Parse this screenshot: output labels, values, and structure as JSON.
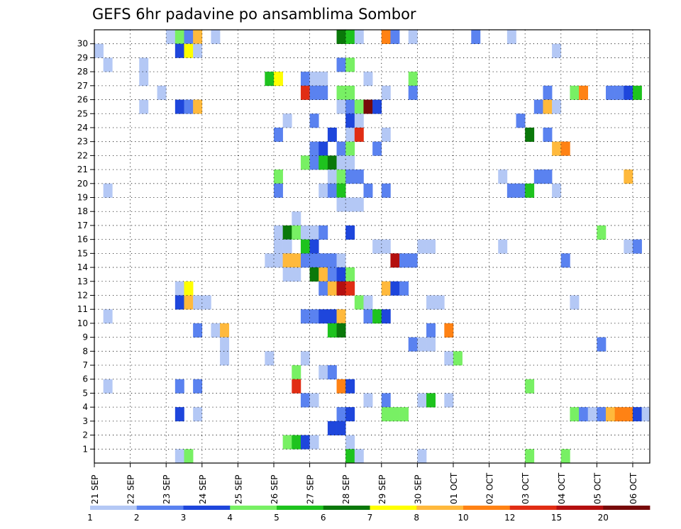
{
  "chart_data": {
    "type": "heatmap",
    "title": "GEFS 6hr padavine po ansamblima Sombor",
    "y_tick_labels": [
      "1",
      "2",
      "3",
      "4",
      "5",
      "6",
      "7",
      "8",
      "9",
      "10",
      "11",
      "12",
      "13",
      "14",
      "15",
      "16",
      "17",
      "18",
      "19",
      "20",
      "21",
      "22",
      "23",
      "24",
      "25",
      "26",
      "27",
      "28",
      "29",
      "30"
    ],
    "x_tick_labels": [
      "21 SEP",
      "22 SEP",
      "23 SEP",
      "24 SEP",
      "25 SEP",
      "26 SEP",
      "27 SEP",
      "28 SEP",
      "29 SEP",
      "30 SEP",
      "01 OCT",
      "02 OCT",
      "03 OCT",
      "04 OCT",
      "05 OCT",
      "06 OCT"
    ],
    "steps_per_day": 4,
    "colorbar": {
      "labels": [
        "1",
        "2",
        "3",
        "4",
        "5",
        "6",
        "7",
        "8",
        "10",
        "12",
        "15",
        "20"
      ],
      "colors": [
        "#b4c8f5",
        "#5a82f0",
        "#1e46dc",
        "#78f064",
        "#1ec31e",
        "#0a780a",
        "#ffff00",
        "#ffb93c",
        "#ff8214",
        "#e12d14",
        "#b40f0f",
        "#780a0a"
      ]
    },
    "cells": [
      [
        30,
        8,
        1
      ],
      [
        30,
        9,
        4
      ],
      [
        30,
        10,
        2
      ],
      [
        30,
        11,
        8
      ],
      [
        30,
        13,
        1
      ],
      [
        30,
        27,
        6
      ],
      [
        30,
        28,
        5
      ],
      [
        30,
        29,
        1
      ],
      [
        30,
        32,
        9
      ],
      [
        30,
        33,
        2
      ],
      [
        30,
        35,
        1
      ],
      [
        30,
        42,
        2
      ],
      [
        30,
        46,
        1
      ],
      [
        29,
        0,
        1
      ],
      [
        29,
        9,
        3
      ],
      [
        29,
        10,
        7
      ],
      [
        29,
        11,
        1
      ],
      [
        29,
        51,
        1
      ],
      [
        28,
        1,
        1
      ],
      [
        28,
        5,
        1
      ],
      [
        28,
        27,
        2
      ],
      [
        28,
        28,
        4
      ],
      [
        27,
        5,
        1
      ],
      [
        27,
        19,
        5
      ],
      [
        27,
        20,
        7
      ],
      [
        27,
        23,
        2
      ],
      [
        27,
        24,
        1
      ],
      [
        27,
        25,
        1
      ],
      [
        27,
        30,
        1
      ],
      [
        27,
        35,
        4
      ],
      [
        26,
        7,
        1
      ],
      [
        26,
        23,
        10
      ],
      [
        26,
        24,
        2
      ],
      [
        26,
        25,
        2
      ],
      [
        26,
        27,
        4
      ],
      [
        26,
        28,
        4
      ],
      [
        26,
        32,
        1
      ],
      [
        26,
        35,
        2
      ],
      [
        26,
        50,
        2
      ],
      [
        26,
        53,
        4
      ],
      [
        26,
        54,
        9
      ],
      [
        26,
        57,
        2
      ],
      [
        26,
        58,
        2
      ],
      [
        26,
        59,
        3
      ],
      [
        26,
        60,
        5
      ],
      [
        25,
        5,
        1
      ],
      [
        25,
        9,
        3
      ],
      [
        25,
        10,
        2
      ],
      [
        25,
        11,
        8
      ],
      [
        25,
        27,
        1
      ],
      [
        25,
        28,
        2
      ],
      [
        25,
        29,
        4
      ],
      [
        25,
        30,
        12
      ],
      [
        25,
        31,
        3
      ],
      [
        25,
        49,
        2
      ],
      [
        25,
        50,
        8
      ],
      [
        25,
        51,
        1
      ],
      [
        24,
        21,
        1
      ],
      [
        24,
        24,
        2
      ],
      [
        24,
        28,
        3
      ],
      [
        24,
        29,
        1
      ],
      [
        24,
        47,
        2
      ],
      [
        23,
        20,
        2
      ],
      [
        23,
        26,
        3
      ],
      [
        23,
        28,
        1
      ],
      [
        23,
        29,
        10
      ],
      [
        23,
        32,
        1
      ],
      [
        23,
        48,
        6
      ],
      [
        23,
        50,
        2
      ],
      [
        22,
        24,
        2
      ],
      [
        22,
        25,
        3
      ],
      [
        22,
        27,
        2
      ],
      [
        22,
        28,
        4
      ],
      [
        22,
        31,
        2
      ],
      [
        22,
        51,
        8
      ],
      [
        22,
        52,
        9
      ],
      [
        21,
        23,
        4
      ],
      [
        21,
        24,
        2
      ],
      [
        21,
        25,
        5
      ],
      [
        21,
        26,
        6
      ],
      [
        21,
        27,
        1
      ],
      [
        21,
        28,
        1
      ],
      [
        20,
        20,
        4
      ],
      [
        20,
        26,
        1
      ],
      [
        20,
        27,
        4
      ],
      [
        20,
        28,
        2
      ],
      [
        20,
        29,
        2
      ],
      [
        20,
        45,
        1
      ],
      [
        20,
        49,
        2
      ],
      [
        20,
        50,
        2
      ],
      [
        20,
        59,
        8
      ],
      [
        19,
        1,
        1
      ],
      [
        19,
        20,
        2
      ],
      [
        19,
        25,
        1
      ],
      [
        19,
        26,
        2
      ],
      [
        19,
        27,
        5
      ],
      [
        19,
        30,
        2
      ],
      [
        19,
        32,
        2
      ],
      [
        19,
        46,
        2
      ],
      [
        19,
        47,
        2
      ],
      [
        19,
        48,
        5
      ],
      [
        19,
        51,
        1
      ],
      [
        18,
        27,
        1
      ],
      [
        18,
        28,
        1
      ],
      [
        18,
        29,
        1
      ],
      [
        17,
        22,
        1
      ],
      [
        16,
        20,
        1
      ],
      [
        16,
        21,
        6
      ],
      [
        16,
        22,
        4
      ],
      [
        16,
        23,
        1
      ],
      [
        16,
        24,
        1
      ],
      [
        16,
        25,
        2
      ],
      [
        16,
        28,
        3
      ],
      [
        16,
        56,
        4
      ],
      [
        15,
        20,
        1
      ],
      [
        15,
        21,
        1
      ],
      [
        15,
        23,
        5
      ],
      [
        15,
        24,
        3
      ],
      [
        15,
        31,
        1
      ],
      [
        15,
        32,
        1
      ],
      [
        15,
        36,
        1
      ],
      [
        15,
        37,
        1
      ],
      [
        15,
        45,
        1
      ],
      [
        15,
        59,
        1
      ],
      [
        15,
        60,
        2
      ],
      [
        14,
        19,
        1
      ],
      [
        14,
        20,
        1
      ],
      [
        14,
        21,
        8
      ],
      [
        14,
        22,
        8
      ],
      [
        14,
        23,
        2
      ],
      [
        14,
        24,
        2
      ],
      [
        14,
        25,
        2
      ],
      [
        14,
        26,
        2
      ],
      [
        14,
        27,
        1
      ],
      [
        14,
        33,
        11
      ],
      [
        14,
        34,
        2
      ],
      [
        14,
        35,
        2
      ],
      [
        14,
        52,
        2
      ],
      [
        13,
        21,
        1
      ],
      [
        13,
        22,
        1
      ],
      [
        13,
        24,
        6
      ],
      [
        13,
        25,
        8
      ],
      [
        13,
        26,
        2
      ],
      [
        13,
        27,
        3
      ],
      [
        13,
        28,
        4
      ],
      [
        12,
        9,
        1
      ],
      [
        12,
        10,
        7
      ],
      [
        12,
        25,
        2
      ],
      [
        12,
        26,
        8
      ],
      [
        12,
        27,
        11
      ],
      [
        12,
        28,
        10
      ],
      [
        12,
        32,
        8
      ],
      [
        12,
        33,
        3
      ],
      [
        12,
        34,
        2
      ],
      [
        11,
        9,
        3
      ],
      [
        11,
        10,
        8
      ],
      [
        11,
        11,
        1
      ],
      [
        11,
        12,
        1
      ],
      [
        11,
        29,
        4
      ],
      [
        11,
        30,
        1
      ],
      [
        11,
        37,
        1
      ],
      [
        11,
        38,
        1
      ],
      [
        11,
        53,
        1
      ],
      [
        10,
        1,
        1
      ],
      [
        10,
        23,
        2
      ],
      [
        10,
        24,
        2
      ],
      [
        10,
        25,
        3
      ],
      [
        10,
        26,
        3
      ],
      [
        10,
        27,
        8
      ],
      [
        10,
        30,
        2
      ],
      [
        10,
        31,
        5
      ],
      [
        10,
        32,
        3
      ],
      [
        9,
        11,
        2
      ],
      [
        9,
        13,
        1
      ],
      [
        9,
        14,
        8
      ],
      [
        9,
        26,
        5
      ],
      [
        9,
        27,
        6
      ],
      [
        9,
        37,
        2
      ],
      [
        9,
        39,
        9
      ],
      [
        8,
        14,
        1
      ],
      [
        8,
        35,
        2
      ],
      [
        8,
        36,
        1
      ],
      [
        8,
        37,
        1
      ],
      [
        8,
        56,
        2
      ],
      [
        7,
        14,
        1
      ],
      [
        7,
        19,
        1
      ],
      [
        7,
        23,
        1
      ],
      [
        7,
        39,
        1
      ],
      [
        7,
        40,
        4
      ],
      [
        6,
        22,
        4
      ],
      [
        6,
        25,
        1
      ],
      [
        6,
        26,
        2
      ],
      [
        5,
        1,
        1
      ],
      [
        5,
        9,
        2
      ],
      [
        5,
        11,
        2
      ],
      [
        5,
        22,
        10
      ],
      [
        5,
        27,
        9
      ],
      [
        5,
        28,
        3
      ],
      [
        5,
        48,
        4
      ],
      [
        4,
        23,
        2
      ],
      [
        4,
        24,
        1
      ],
      [
        4,
        30,
        1
      ],
      [
        4,
        32,
        2
      ],
      [
        4,
        36,
        1
      ],
      [
        4,
        37,
        5
      ],
      [
        4,
        39,
        1
      ],
      [
        3,
        9,
        3
      ],
      [
        3,
        11,
        1
      ],
      [
        3,
        27,
        2
      ],
      [
        3,
        28,
        3
      ],
      [
        3,
        32,
        4
      ],
      [
        3,
        33,
        4
      ],
      [
        3,
        34,
        4
      ],
      [
        3,
        53,
        4
      ],
      [
        3,
        54,
        2
      ],
      [
        3,
        55,
        1
      ],
      [
        3,
        56,
        2
      ],
      [
        3,
        57,
        8
      ],
      [
        3,
        58,
        9
      ],
      [
        3,
        59,
        9
      ],
      [
        3,
        60,
        3
      ],
      [
        3,
        61,
        1
      ],
      [
        2,
        26,
        3
      ],
      [
        2,
        27,
        3
      ],
      [
        1,
        21,
        4
      ],
      [
        1,
        22,
        5
      ],
      [
        1,
        23,
        3
      ],
      [
        1,
        24,
        1
      ],
      [
        1,
        28,
        1
      ],
      [
        0,
        9,
        1
      ],
      [
        0,
        10,
        4
      ],
      [
        0,
        28,
        5
      ],
      [
        0,
        29,
        1
      ],
      [
        0,
        36,
        1
      ],
      [
        0,
        48,
        4
      ],
      [
        0,
        52,
        4
      ]
    ]
  }
}
